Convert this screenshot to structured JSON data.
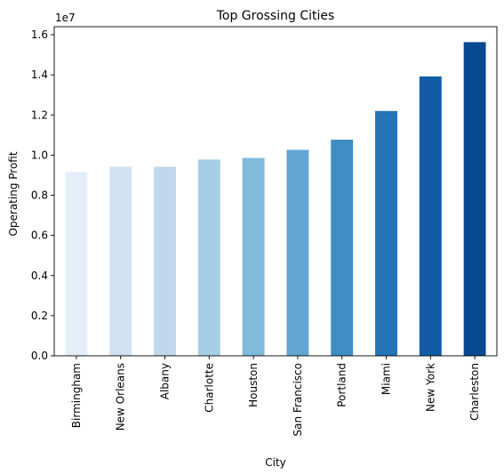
{
  "chart_data": {
    "type": "bar",
    "title": "Top Grossing Cities",
    "xlabel": "City",
    "ylabel": "Operating Profit",
    "y_offset_text": "1e7",
    "y_scale": 10000000,
    "categories": [
      "Birmingham",
      "New Orleans",
      "Albany",
      "Charlotte",
      "Houston",
      "San Francisco",
      "Portland",
      "Miami",
      "New York",
      "Charleston"
    ],
    "values": [
      9150000,
      9420000,
      9420000,
      9780000,
      9860000,
      10260000,
      10770000,
      12200000,
      13920000,
      15630000
    ],
    "ylim": [
      0,
      16400000
    ],
    "yticks": [
      0,
      2000000,
      4000000,
      6000000,
      8000000,
      10000000,
      12000000,
      14000000,
      16000000
    ],
    "ytick_labels": [
      "0.0",
      "0.2",
      "0.4",
      "0.6",
      "0.8",
      "1.0",
      "1.2",
      "1.4",
      "1.6"
    ],
    "bar_colors": [
      "#e3eef9",
      "#d0e1f2",
      "#bfd8ed",
      "#a6cee4",
      "#81badb",
      "#60a6d1",
      "#3e8ec4",
      "#2474b7",
      "#115ca5",
      "#084a91"
    ],
    "grid": false,
    "legend": false
  }
}
